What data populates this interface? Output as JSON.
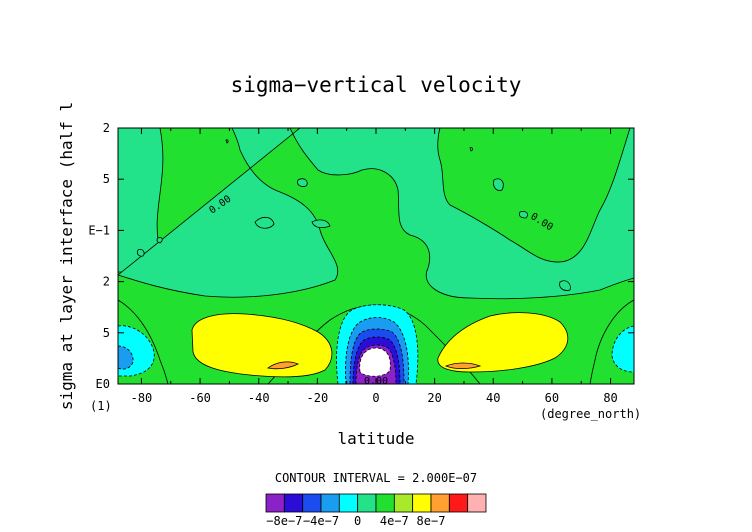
{
  "chart_data": {
    "type": "heatmap",
    "title": "sigma−vertical velocity",
    "xlabel": "latitude",
    "ylabel": "sigma at layer interface (half l",
    "x_unit": "(degree_north)",
    "y_unit": "(1)",
    "xlim": [
      -88,
      88
    ],
    "x_ticks": [
      -80,
      -60,
      -40,
      -20,
      0,
      20,
      40,
      60,
      80
    ],
    "y_tick_labels": [
      "2",
      "5",
      "E−1",
      "2",
      "5",
      "E0"
    ],
    "contour_annotations": [
      {
        "text": "0.00",
        "lat": -52,
        "level": 0.74
      },
      {
        "text": "0.00",
        "lat": 55,
        "level": 0.71
      },
      {
        "text": "0.00",
        "lat": 0,
        "level": 0.04
      }
    ],
    "contour_interval_label": "CONTOUR INTERVAL = 2.000E−07",
    "colorbar": {
      "levels": [
        -1e-06,
        -8e-07,
        -6e-07,
        -4e-07,
        -2e-07,
        0,
        2e-07,
        4e-07,
        6e-07,
        8e-07,
        1e-06
      ],
      "colors": [
        "#8a22c8",
        "#2a0ed8",
        "#1a4cf0",
        "#1a9cf0",
        "#00ffff",
        "#22e28a",
        "#22e030",
        "#a8ea2a",
        "#ffff00",
        "#ffa030",
        "#ff1a1a",
        "#ffb0b0"
      ],
      "tick_labels": [
        "−8e−7",
        "−4e−7",
        "0",
        "4e−7",
        "8e−7"
      ]
    },
    "regions": [
      {
        "name": "background",
        "value_class": "0 to 2e-7"
      },
      {
        "name": "south-subtropical-subsidence",
        "value_class": "4e-7 to 6e-7"
      },
      {
        "name": "north-subtropical-subsidence",
        "value_class": "4e-7 to 6e-7"
      },
      {
        "name": "equatorial-ascent-core",
        "value_class": "below -1e-6"
      }
    ],
    "grid": false
  }
}
